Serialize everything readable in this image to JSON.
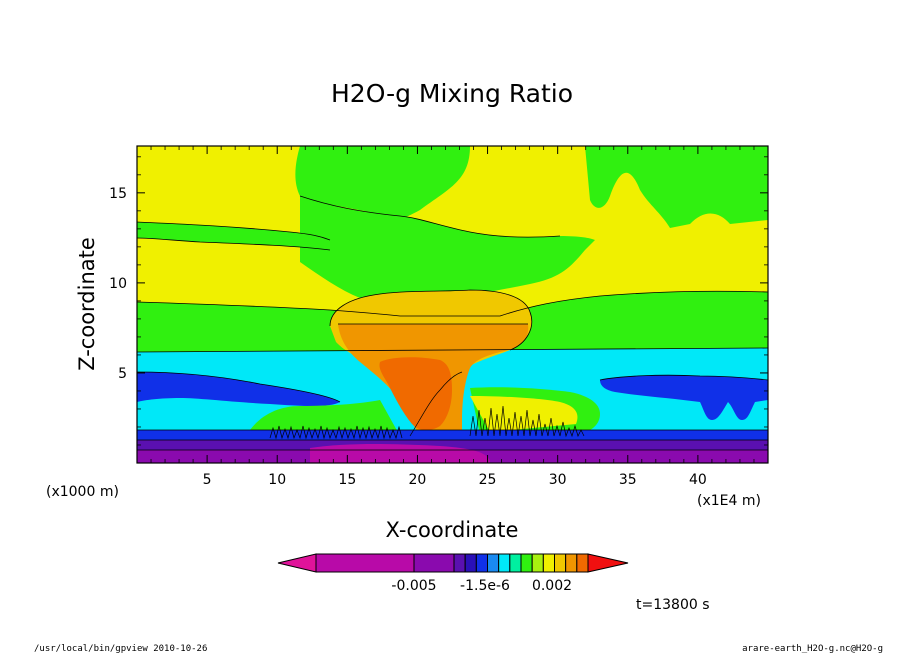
{
  "chart_data": {
    "type": "heatmap",
    "title": "H2O-g Mixing Ratio",
    "xlabel": "X-coordinate",
    "ylabel": "Z-coordinate",
    "x_unit": "(x1E4 m)",
    "y_unit": "(x1000 m)",
    "xlim": [
      0,
      45
    ],
    "ylim": [
      0,
      17.6
    ],
    "xticks": [
      "5",
      "10",
      "15",
      "20",
      "25",
      "30",
      "35",
      "40"
    ],
    "yticks": [
      "5",
      "10",
      "15"
    ],
    "colorbar": {
      "colors": [
        "#e0139a",
        "#b80aa8",
        "#8a0aae",
        "#5a10b0",
        "#2a10b8",
        "#1030e8",
        "#1a8af0",
        "#00e8f8",
        "#00f0a0",
        "#30f010",
        "#a8f010",
        "#f0f000",
        "#f0c800",
        "#f09600",
        "#f06a00",
        "#f01010"
      ],
      "tick_labels": [
        "-0.005",
        "-1.5e-6",
        "0.002"
      ]
    },
    "time_label": "t=13800 s"
  },
  "footer": {
    "left": "/usr/local/bin/gpview  2010-10-26",
    "right": "arare-earth_H2O-g.nc@H2O-g"
  }
}
